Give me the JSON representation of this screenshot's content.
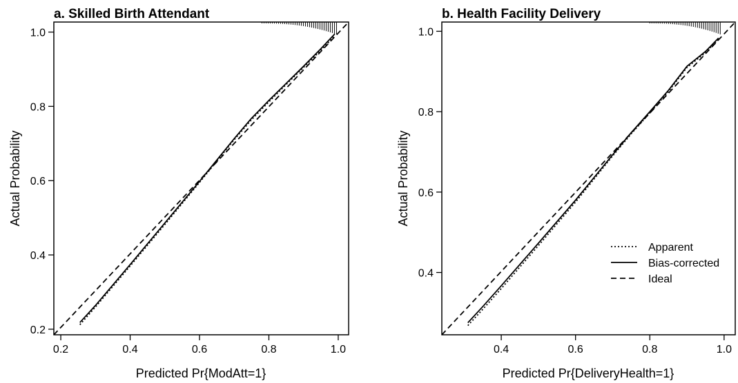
{
  "chart_data": [
    {
      "type": "line",
      "title": "a. Skilled Birth Attendant",
      "xlabel": "Predicted Pr{ModAtt=1}",
      "ylabel": "Actual Probability",
      "xlim": [
        0.18,
        1.03
      ],
      "ylim": [
        0.185,
        1.027
      ],
      "xticks": [
        0.2,
        0.4,
        0.6,
        0.8,
        1.0
      ],
      "xtick_labels": [
        "0.2",
        "0.4",
        "0.6",
        "0.8",
        "1.0"
      ],
      "yticks": [
        0.2,
        0.4,
        0.6,
        0.8,
        1.0
      ],
      "ytick_labels": [
        "0.2",
        "0.4",
        "0.6",
        "0.8",
        "1.0"
      ],
      "grid": false,
      "legend": null,
      "series": [
        {
          "name": "Apparent",
          "style": "dotted",
          "x": [
            0.255,
            0.3,
            0.4,
            0.5,
            0.6,
            0.7,
            0.75,
            0.8,
            0.85,
            0.9,
            0.95,
            0.99
          ],
          "y": [
            0.212,
            0.26,
            0.37,
            0.482,
            0.595,
            0.71,
            0.764,
            0.812,
            0.859,
            0.905,
            0.951,
            0.99
          ]
        },
        {
          "name": "Bias-corrected",
          "style": "solid",
          "x": [
            0.255,
            0.3,
            0.4,
            0.5,
            0.6,
            0.7,
            0.75,
            0.8,
            0.85,
            0.9,
            0.95,
            0.99
          ],
          "y": [
            0.218,
            0.264,
            0.374,
            0.486,
            0.598,
            0.713,
            0.768,
            0.816,
            0.862,
            0.908,
            0.955,
            0.995
          ]
        },
        {
          "name": "Ideal",
          "style": "dashed",
          "x": [
            0.18,
            1.03
          ],
          "y": [
            0.18,
            1.03
          ]
        }
      ],
      "rug_start": 0.78,
      "rug_end": 0.995
    },
    {
      "type": "line",
      "title": "b. Health Facility Delivery",
      "xlabel": "Predicted Pr{DeliveryHealth=1}",
      "ylabel": "Actual Probability",
      "xlim": [
        0.24,
        1.03
      ],
      "ylim": [
        0.245,
        1.023
      ],
      "xticks": [
        0.4,
        0.6,
        0.8,
        1.0
      ],
      "xtick_labels": [
        "0.4",
        "0.6",
        "0.8",
        "1.0"
      ],
      "yticks": [
        0.4,
        0.6,
        0.8,
        1.0
      ],
      "ytick_labels": [
        "0.4",
        "0.6",
        "0.8",
        "1.0"
      ],
      "grid": false,
      "legend": {
        "position": "bottom-right",
        "entries": [
          {
            "label": "Apparent",
            "style": "dotted"
          },
          {
            "label": "Bias-corrected",
            "style": "solid"
          },
          {
            "label": "Ideal",
            "style": "dashed"
          }
        ]
      },
      "series": [
        {
          "name": "Apparent",
          "style": "dotted",
          "x": [
            0.31,
            0.35,
            0.4,
            0.5,
            0.6,
            0.7,
            0.75,
            0.8,
            0.85,
            0.9,
            0.95,
            0.985
          ],
          "y": [
            0.268,
            0.308,
            0.36,
            0.467,
            0.575,
            0.69,
            0.745,
            0.797,
            0.85,
            0.91,
            0.947,
            0.98
          ]
        },
        {
          "name": "Bias-corrected",
          "style": "solid",
          "x": [
            0.31,
            0.35,
            0.4,
            0.5,
            0.6,
            0.7,
            0.75,
            0.8,
            0.85,
            0.9,
            0.95,
            0.985
          ],
          "y": [
            0.275,
            0.315,
            0.367,
            0.473,
            0.58,
            0.693,
            0.748,
            0.8,
            0.853,
            0.913,
            0.95,
            0.983
          ]
        },
        {
          "name": "Ideal",
          "style": "dashed",
          "x": [
            0.24,
            1.03
          ],
          "y": [
            0.24,
            1.03
          ]
        }
      ],
      "rug_start": 0.8,
      "rug_end": 0.99
    }
  ]
}
